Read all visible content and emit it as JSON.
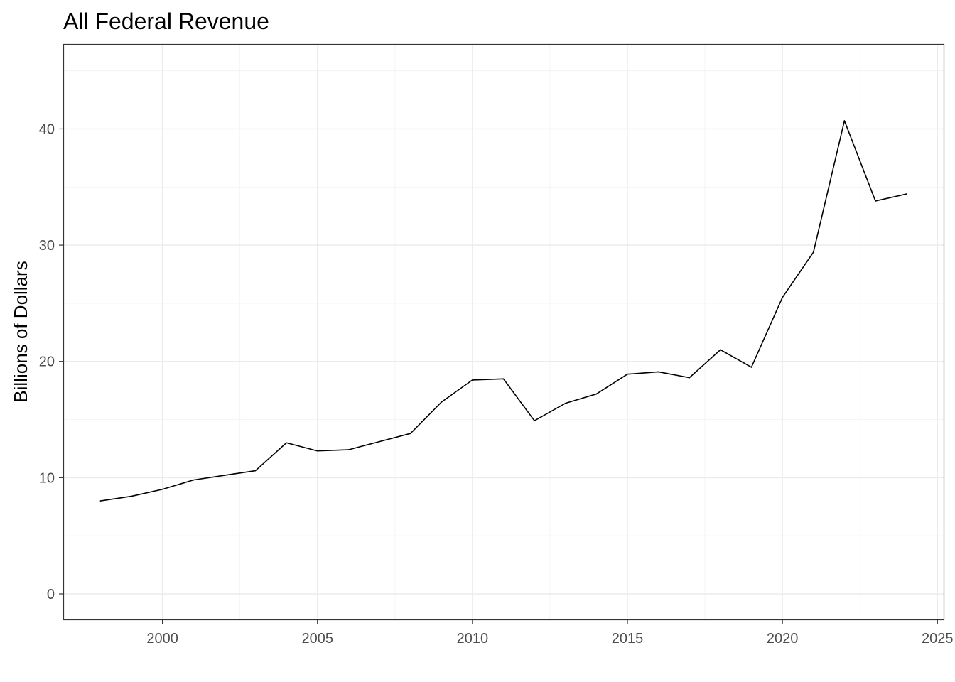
{
  "chart_data": {
    "type": "line",
    "title": "All Federal Revenue",
    "xlabel": "",
    "ylabel": "Billions of Dollars",
    "x": [
      1998,
      1999,
      2000,
      2001,
      2002,
      2003,
      2004,
      2005,
      2006,
      2007,
      2008,
      2009,
      2010,
      2011,
      2012,
      2013,
      2014,
      2015,
      2016,
      2017,
      2018,
      2019,
      2020,
      2021,
      2022,
      2023,
      2024
    ],
    "series": [
      {
        "values": [
          8.0,
          8.4,
          9.0,
          9.8,
          10.2,
          10.6,
          13.0,
          12.3,
          12.4,
          13.1,
          13.8,
          16.5,
          18.4,
          18.5,
          14.9,
          16.4,
          17.2,
          18.9,
          19.1,
          18.6,
          21.0,
          19.5,
          25.5,
          29.4,
          40.7,
          33.8,
          34.4
        ],
        "color": "#000000"
      }
    ],
    "x_ticks": [
      "2000",
      "2005",
      "2010",
      "2015",
      "2020",
      "2025"
    ],
    "y_ticks": [
      "0",
      "10",
      "20",
      "30",
      "40"
    ],
    "xlim": [
      1996.8,
      2025.2
    ],
    "ylim": [
      -2.2,
      47.3
    ],
    "grid": true,
    "legend": "none"
  }
}
